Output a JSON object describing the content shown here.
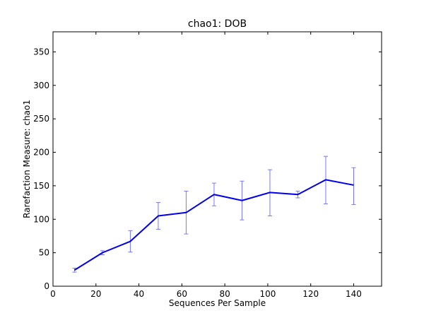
{
  "chart_data": {
    "type": "line",
    "title": "chao1: DOB",
    "xlabel": "Sequences Per Sample",
    "ylabel": "Rarefaction Measure: chao1",
    "xlim": [
      0,
      153
    ],
    "ylim": [
      0,
      380
    ],
    "xticks": [
      0,
      20,
      40,
      60,
      80,
      100,
      120,
      140
    ],
    "yticks": [
      0,
      50,
      100,
      150,
      200,
      250,
      300,
      350
    ],
    "grid": false,
    "series": [
      {
        "color": "#0000ee",
        "errorbar_color": "#7777ff",
        "x": [
          10,
          23,
          36,
          49,
          62,
          75,
          88,
          101,
          114,
          127,
          140
        ],
        "y": [
          24,
          50,
          67,
          105,
          110,
          137,
          128,
          140,
          137,
          159,
          151
        ],
        "err_low": [
          21,
          47,
          51,
          85,
          78,
          120,
          99,
          105,
          132,
          123,
          122
        ],
        "err_high": [
          27,
          53,
          83,
          125,
          142,
          154,
          157,
          174,
          142,
          194,
          177
        ]
      }
    ]
  }
}
